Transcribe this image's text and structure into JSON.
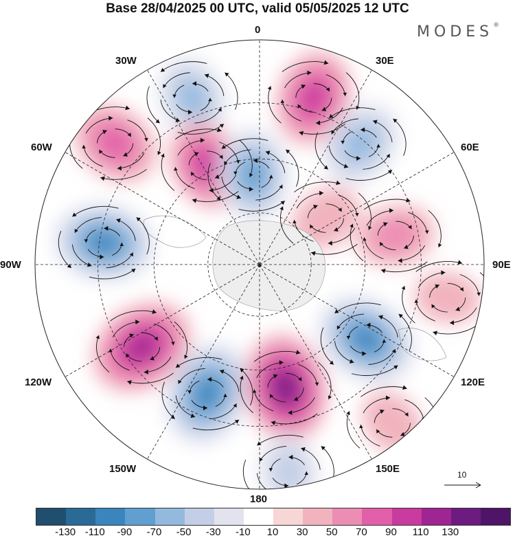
{
  "title": "Base 28/04/2025 00 UTC, valid 05/05/2025 12 UTC",
  "logo": {
    "text": "MODES",
    "mark": "®"
  },
  "longitude_labels": {
    "lon_0": "0",
    "lon_30e": "30E",
    "lon_60e": "60E",
    "lon_90e": "90E",
    "lon_120e": "120E",
    "lon_150e": "150E",
    "lon_180": "180",
    "lon_150w": "150W",
    "lon_120w": "120W",
    "lon_90w": "90W",
    "lon_60w": "60W",
    "lon_30w": "30W"
  },
  "vector_scale": {
    "value": "10"
  },
  "colorbar": {
    "colors": [
      "#1f4e6e",
      "#2a6a97",
      "#3a85bd",
      "#609fcf",
      "#93b9df",
      "#c2cfe6",
      "#e2e3ef",
      "#ffffff",
      "#f7d6d6",
      "#f1b4be",
      "#ec8db4",
      "#e25fa9",
      "#c93b9e",
      "#9e2592",
      "#6d1b80",
      "#4e1468"
    ],
    "tick_labels": [
      "-130",
      "-110",
      "-90",
      "-70",
      "-50",
      "-30",
      "-10",
      "10",
      "30",
      "50",
      "70",
      "90",
      "110",
      "130"
    ]
  },
  "anomaly_centers": [
    {
      "lon": 18,
      "value": 100,
      "dist": 0.78
    },
    {
      "lon": -22,
      "value": -70,
      "dist": 0.8
    },
    {
      "lon": -50,
      "value": 85,
      "dist": 0.84
    },
    {
      "lon": -28,
      "value": 90,
      "dist": 0.5
    },
    {
      "lon": -4,
      "value": -90,
      "dist": 0.4
    },
    {
      "lon": 40,
      "value": -80,
      "dist": 0.7
    },
    {
      "lon": 55,
      "value": 45,
      "dist": 0.36
    },
    {
      "lon": 78,
      "value": 60,
      "dist": 0.62
    },
    {
      "lon": -82,
      "value": -110,
      "dist": 0.7
    },
    {
      "lon": -125,
      "value": 125,
      "dist": 0.64
    },
    {
      "lon": -158,
      "value": -120,
      "dist": 0.62
    },
    {
      "lon": 168,
      "value": 130,
      "dist": 0.56
    },
    {
      "lon": 125,
      "value": -115,
      "dist": 0.58
    },
    {
      "lon": 172,
      "value": -50,
      "dist": 0.93
    },
    {
      "lon": 140,
      "value": 35,
      "dist": 0.92
    },
    {
      "lon": 100,
      "value": 30,
      "dist": 0.85
    }
  ]
}
